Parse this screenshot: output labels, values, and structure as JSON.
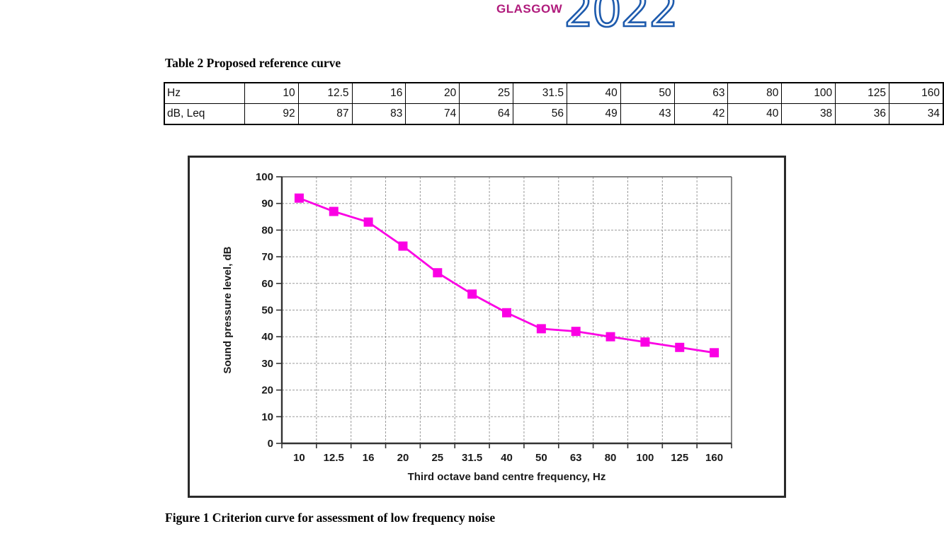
{
  "logo": {
    "city": "GLASGOW",
    "year": "2022",
    "city_color": "#B01B7C",
    "year_color": "#1E5BAD"
  },
  "table": {
    "title": "Table 2 Proposed reference curve",
    "rows": [
      {
        "label": "Hz",
        "values": [
          "10",
          "12.5",
          "16",
          "20",
          "25",
          "31.5",
          "40",
          "50",
          "63",
          "80",
          "100",
          "125",
          "160"
        ]
      },
      {
        "label": "dB, Leq",
        "values": [
          "92",
          "87",
          "83",
          "74",
          "64",
          "56",
          "49",
          "43",
          "42",
          "40",
          "38",
          "36",
          "34"
        ]
      }
    ]
  },
  "figure": {
    "caption": "Figure 1 Criterion curve for assessment of low frequency noise"
  },
  "chart_data": {
    "type": "line",
    "categories": [
      "10",
      "12.5",
      "16",
      "20",
      "25",
      "31.5",
      "40",
      "50",
      "63",
      "80",
      "100",
      "125",
      "160"
    ],
    "values": [
      92,
      87,
      83,
      74,
      64,
      56,
      49,
      43,
      42,
      40,
      38,
      36,
      34
    ],
    "xlabel": "Third octave band centre frequency, Hz",
    "ylabel": "Sound pressure level, dB",
    "ylim": [
      0,
      100
    ],
    "yticks": [
      0,
      10,
      20,
      30,
      40,
      50,
      60,
      70,
      80,
      90,
      100
    ],
    "line_color": "#FB00E4",
    "marker": "square",
    "marker_size": 13,
    "grid": true,
    "grid_color": "#9b9b9b",
    "axis_color": "#333333",
    "legend": "none"
  }
}
